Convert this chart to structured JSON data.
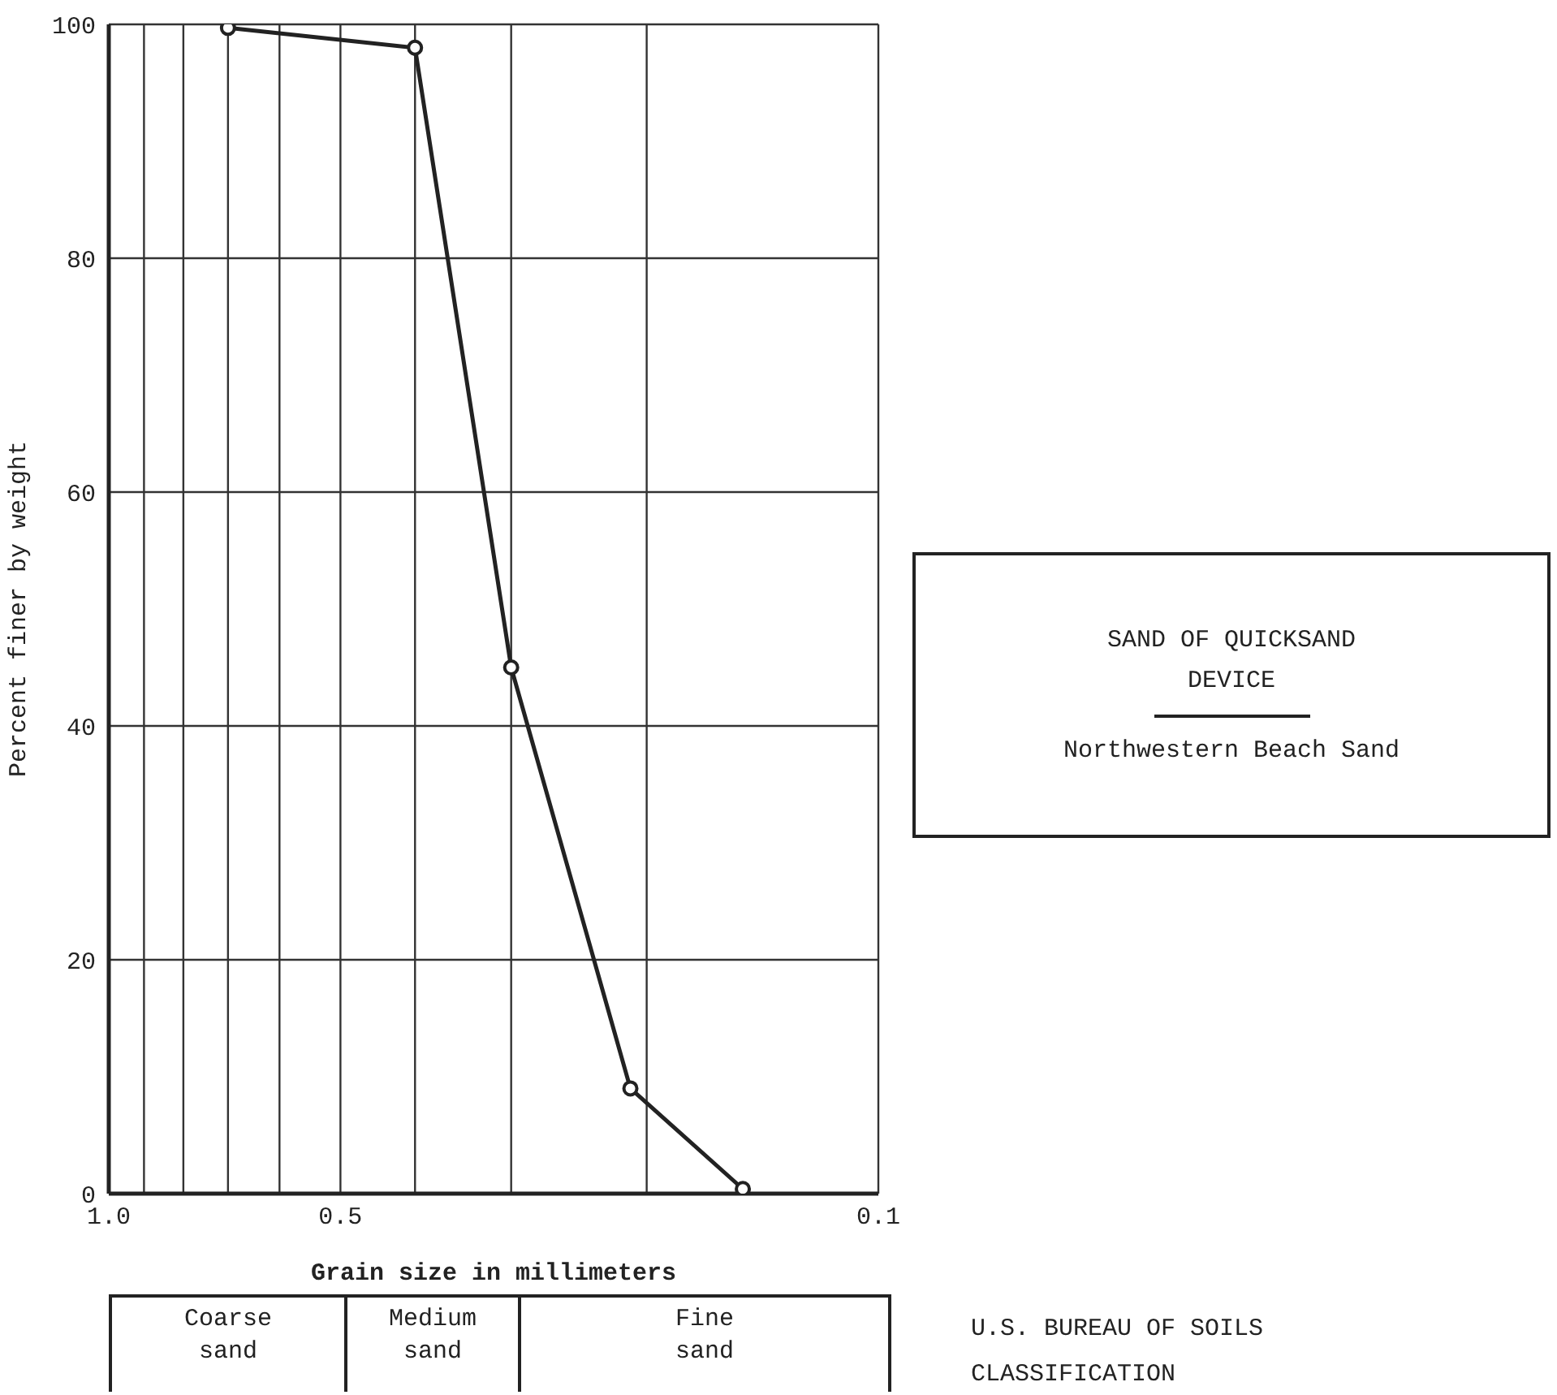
{
  "chart_data": {
    "type": "line",
    "xlabel": "Grain size in millimeters",
    "ylabel": "Percent finer by weight",
    "legend_title": "SAND OF QUICKSAND DEVICE",
    "legend": "right",
    "grid": true,
    "marker": "circle",
    "line_style": "solid",
    "log": "x",
    "xlim": [
      1,
      0.1
    ],
    "xticks": [
      {
        "value": 1,
        "label": "1.0"
      },
      {
        "value": 0.9,
        "label": null
      },
      {
        "value": 0.8,
        "label": null
      },
      {
        "value": 0.7,
        "label": null
      },
      {
        "value": 0.6,
        "label": null
      },
      0.5,
      {
        "value": 0.4,
        "label": null
      },
      {
        "value": 0.3,
        "label": null
      },
      {
        "value": 0.2,
        "label": null
      },
      0.1
    ],
    "ylim": [
      0,
      100
    ],
    "yticks": [
      0,
      20,
      40,
      60,
      80,
      100
    ],
    "series": [
      {
        "name": "Northwestern Beach Sand",
        "color": "#222222",
        "x": [
          0.7,
          0.4,
          0.3,
          0.21,
          0.15
        ],
        "values": [
          99.7,
          98,
          45,
          9,
          0.4
        ]
      }
    ],
    "annotations": [
      "Coarse sand",
      "Medium sand",
      "Fine sand",
      "U.S. BUREAU OF SOILS CLASSIFICATION"
    ]
  }
}
